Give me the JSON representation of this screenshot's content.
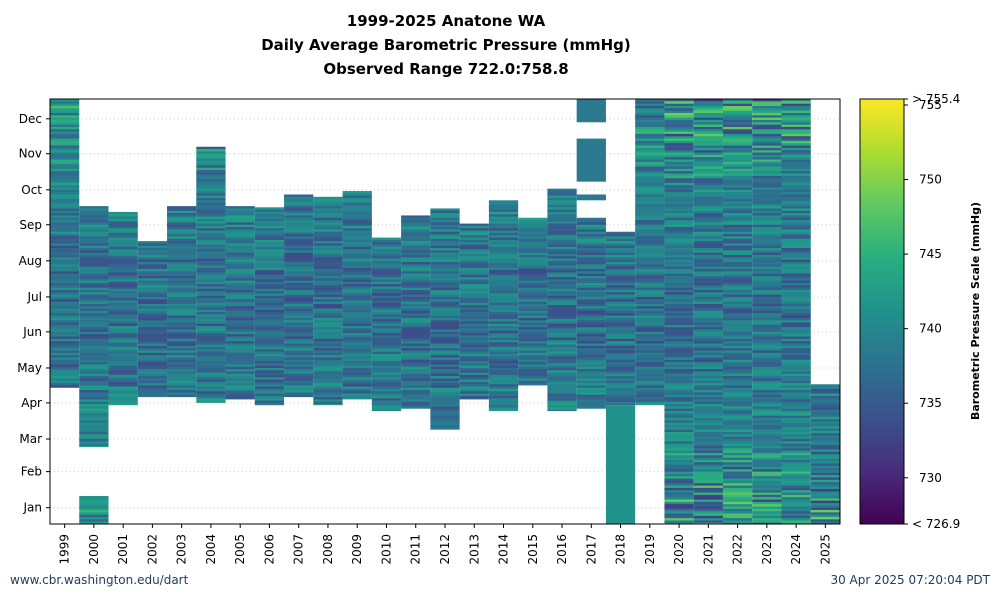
{
  "chart_data": {
    "type": "heatmap",
    "title": "1999-2025 Anatone WA",
    "subtitle": "Daily Average Barometric Pressure (mmHg)",
    "subtitle2": "Observed Range 722.0:758.8",
    "x_categories": [
      "1999",
      "2000",
      "2001",
      "2002",
      "2003",
      "2004",
      "2005",
      "2006",
      "2007",
      "2008",
      "2009",
      "2010",
      "2011",
      "2012",
      "2013",
      "2014",
      "2015",
      "2016",
      "2017",
      "2018",
      "2019",
      "2020",
      "2021",
      "2022",
      "2023",
      "2024",
      "2025"
    ],
    "y_ticks": [
      "Jan",
      "Feb",
      "Mar",
      "Apr",
      "May",
      "Jun",
      "Jul",
      "Aug",
      "Sep",
      "Oct",
      "Nov",
      "Dec"
    ],
    "colorbar": {
      "label": "Barometric Pressure Scale (mmHg)",
      "min": 726.9,
      "max": 755.4,
      "ticks": [
        730,
        735,
        740,
        745,
        750,
        755
      ],
      "over_label": "> 755.4",
      "under_label": "< 726.9",
      "colormap": "viridis"
    },
    "coverage": [
      {
        "year": "1999",
        "segments": [
          [
            "Apr 28",
            "Dec 31"
          ]
        ]
      },
      {
        "year": "2000",
        "segments": [
          [
            "Jan 1",
            "Jan 24"
          ],
          [
            "Mar 8",
            "Sep 30"
          ]
        ]
      },
      {
        "year": "2001",
        "segments": [
          [
            "Apr 13",
            "Sep 25"
          ]
        ]
      },
      {
        "year": "2002",
        "segments": [
          [
            "Apr 20",
            "Aug 31"
          ]
        ]
      },
      {
        "year": "2003",
        "segments": [
          [
            "Apr 20",
            "Sep 30"
          ]
        ]
      },
      {
        "year": "2004",
        "segments": [
          [
            "Apr 15",
            "Nov 20"
          ]
        ]
      },
      {
        "year": "2005",
        "segments": [
          [
            "Apr 18",
            "Sep 30"
          ]
        ]
      },
      {
        "year": "2006",
        "segments": [
          [
            "Apr 13",
            "Sep 29"
          ]
        ]
      },
      {
        "year": "2007",
        "segments": [
          [
            "Apr 20",
            "Oct 10"
          ]
        ]
      },
      {
        "year": "2008",
        "segments": [
          [
            "Apr 13",
            "Oct 8"
          ]
        ]
      },
      {
        "year": "2009",
        "segments": [
          [
            "Apr 18",
            "Oct 13"
          ]
        ]
      },
      {
        "year": "2010",
        "segments": [
          [
            "Apr 8",
            "Sep 3"
          ]
        ]
      },
      {
        "year": "2011",
        "segments": [
          [
            "Apr 10",
            "Sep 22"
          ]
        ]
      },
      {
        "year": "2012",
        "segments": [
          [
            "Mar 23",
            "Sep 28"
          ]
        ]
      },
      {
        "year": "2013",
        "segments": [
          [
            "Apr 18",
            "Sep 15"
          ]
        ]
      },
      {
        "year": "2014",
        "segments": [
          [
            "Apr 8",
            "Oct 5"
          ]
        ]
      },
      {
        "year": "2015",
        "segments": [
          [
            "Apr 30",
            "Sep 20"
          ]
        ]
      },
      {
        "year": "2016",
        "segments": [
          [
            "Apr 8",
            "Oct 15"
          ]
        ]
      },
      {
        "year": "2017",
        "segments": [
          [
            "Apr 10",
            "Sep 20"
          ],
          [
            "Oct 6",
            "Oct 10"
          ],
          [
            "Oct 22",
            "Nov 27"
          ],
          [
            "Dec 12",
            "Dec 31"
          ]
        ]
      },
      {
        "year": "2018",
        "segments": [
          [
            "Jan 1",
            "Sep 8"
          ]
        ]
      },
      {
        "year": "2019",
        "segments": [
          [
            "Apr 13",
            "Dec 31"
          ]
        ]
      },
      {
        "year": "2020",
        "segments": [
          [
            "Jan 1",
            "Dec 31"
          ]
        ]
      },
      {
        "year": "2021",
        "segments": [
          [
            "Jan 1",
            "Dec 31"
          ]
        ]
      },
      {
        "year": "2022",
        "segments": [
          [
            "Jan 1",
            "Dec 31"
          ]
        ]
      },
      {
        "year": "2023",
        "segments": [
          [
            "Jan 1",
            "Dec 31"
          ]
        ]
      },
      {
        "year": "2024",
        "segments": [
          [
            "Jan 1",
            "Dec 31"
          ]
        ]
      },
      {
        "year": "2025",
        "segments": [
          [
            "Jan 1",
            "Apr 30"
          ]
        ]
      }
    ],
    "notes_2018_jan_apr_constant_mmhg": 741.5,
    "notes_2017_late_constant_mmhg": 738.5,
    "grid": "horizontal dotted at month ticks"
  },
  "footer": {
    "left": "www.cbr.washington.edu/dart",
    "right": "30 Apr 2025 07:20:04 PDT"
  }
}
